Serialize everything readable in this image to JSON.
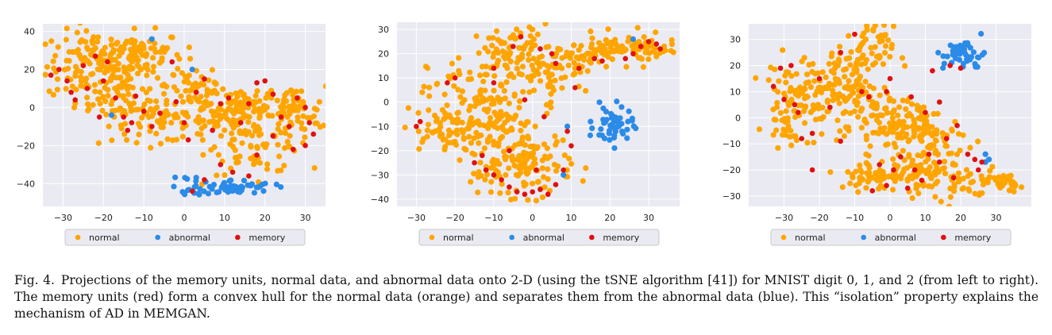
{
  "caption": {
    "label": "Fig. 4.",
    "text": "Projections of the memory units, normal data, and abnormal data onto 2-D (using the tSNE algorithm [41]) for MNIST digit 0, 1, and 2 (from left to right). The memory units (red) form a convex hull for the normal data (orange) and separates them from the abnormal data (blue). This “isolation” property explains the mechanism of AD in MEMGAN."
  },
  "colors": {
    "normal": "#ffa500",
    "abnormal": "#2a8be8",
    "memory": "#e01010",
    "plot_bg": "#eaeaf2",
    "grid": "#ffffff"
  },
  "chart_data": [
    {
      "type": "scatter",
      "title": "",
      "xlabel": "",
      "ylabel": "",
      "xlim": [
        -35,
        35
      ],
      "ylim": [
        -52,
        44
      ],
      "xticks": [
        -30,
        -20,
        -10,
        0,
        10,
        20,
        30
      ],
      "yticks": [
        -40,
        -20,
        0,
        20,
        40
      ],
      "grid": true,
      "legend": {
        "placement": "bottom",
        "entries": [
          "normal",
          "abnormal",
          "memory"
        ]
      },
      "series": [
        {
          "name": "normal",
          "clusters": [
            {
              "cx": -22,
              "cy": 22,
              "sx": 6,
              "sy": 9,
              "n": 120
            },
            {
              "cx": -12,
              "cy": 28,
              "sx": 6,
              "sy": 6,
              "n": 90
            },
            {
              "cx": -15,
              "cy": 5,
              "sx": 6,
              "sy": 7,
              "n": 70
            },
            {
              "cx": -6,
              "cy": -8,
              "sx": 6,
              "sy": 5,
              "n": 60
            },
            {
              "cx": 3,
              "cy": 12,
              "sx": 4,
              "sy": 6,
              "n": 40
            },
            {
              "cx": 8,
              "cy": -5,
              "sx": 5,
              "sy": 6,
              "n": 60
            },
            {
              "cx": 18,
              "cy": -15,
              "sx": 6,
              "sy": 10,
              "n": 110
            },
            {
              "cx": 27,
              "cy": -3,
              "sx": 4,
              "sy": 7,
              "n": 60
            },
            {
              "cx": 16,
              "cy": 2,
              "sx": 5,
              "sy": 5,
              "n": 50
            }
          ]
        },
        {
          "name": "abnormal",
          "clusters": [
            {
              "cx": 12,
              "cy": -42,
              "sx": 5,
              "sy": 2,
              "n": 55
            },
            {
              "cx": 3,
              "cy": -40,
              "sx": 2,
              "sy": 3,
              "n": 12
            }
          ],
          "points": [
            [
              -8,
              36
            ],
            [
              2,
              20
            ],
            [
              -18,
              -4
            ]
          ]
        },
        {
          "name": "memory",
          "points": [
            [
              -33,
              17
            ],
            [
              -31,
              20
            ],
            [
              -29,
              14
            ],
            [
              -28,
              8
            ],
            [
              -27,
              4
            ],
            [
              -25,
              22
            ],
            [
              -22,
              27
            ],
            [
              -20,
              14
            ],
            [
              -19,
              24
            ],
            [
              -17,
              5
            ],
            [
              -15,
              -5
            ],
            [
              -13,
              -8
            ],
            [
              -12,
              6
            ],
            [
              -10,
              -2
            ],
            [
              -8,
              -10
            ],
            [
              -6,
              -3
            ],
            [
              -3,
              24
            ],
            [
              -2,
              3
            ],
            [
              0,
              -8
            ],
            [
              1,
              -17
            ],
            [
              3,
              8
            ],
            [
              5,
              15
            ],
            [
              7,
              -12
            ],
            [
              9,
              2
            ],
            [
              11,
              5
            ],
            [
              14,
              -8
            ],
            [
              16,
              2
            ],
            [
              18,
              13
            ],
            [
              20,
              14
            ],
            [
              22,
              7
            ],
            [
              24,
              -5
            ],
            [
              26,
              -10
            ],
            [
              28,
              5
            ],
            [
              30,
              0
            ],
            [
              31,
              -8
            ],
            [
              32,
              -14
            ],
            [
              30,
              -20
            ],
            [
              27,
              -22
            ],
            [
              22,
              -15
            ],
            [
              18,
              -25
            ],
            [
              16,
              -36
            ],
            [
              12,
              -34
            ],
            [
              9,
              -30
            ],
            [
              5,
              -38
            ],
            [
              2,
              -44
            ],
            [
              -21,
              -5
            ],
            [
              -14,
              -12
            ],
            [
              -24,
              10
            ]
          ]
        }
      ]
    },
    {
      "type": "scatter",
      "title": "",
      "xlabel": "",
      "ylabel": "",
      "xlim": [
        -35,
        38
      ],
      "ylim": [
        -43,
        33
      ],
      "xticks": [
        -30,
        -20,
        -10,
        0,
        10,
        20,
        30
      ],
      "yticks": [
        -40,
        -30,
        -20,
        -10,
        0,
        10,
        20,
        30
      ],
      "grid": true,
      "legend": {
        "placement": "bottom",
        "entries": [
          "normal",
          "abnormal",
          "memory"
        ]
      },
      "series": [
        {
          "name": "normal",
          "clusters": [
            {
              "cx": -22,
              "cy": -12,
              "sx": 6,
              "sy": 5,
              "n": 80
            },
            {
              "cx": -15,
              "cy": 3,
              "sx": 6,
              "sy": 8,
              "n": 70
            },
            {
              "cx": -5,
              "cy": 20,
              "sx": 5,
              "sy": 6,
              "n": 80
            },
            {
              "cx": 3,
              "cy": 12,
              "sx": 5,
              "sy": 7,
              "n": 60
            },
            {
              "cx": -8,
              "cy": -8,
              "sx": 4,
              "sy": 6,
              "n": 50
            },
            {
              "cx": 0,
              "cy": -25,
              "sx": 5,
              "sy": 7,
              "n": 100
            },
            {
              "cx": -8,
              "cy": -28,
              "sx": 4,
              "sy": 4,
              "n": 40
            },
            {
              "cx": 12,
              "cy": 16,
              "sx": 3,
              "sy": 4,
              "n": 30
            },
            {
              "cx": 22,
              "cy": 22,
              "sx": 6,
              "sy": 3,
              "n": 70
            },
            {
              "cx": 31,
              "cy": 22,
              "sx": 3,
              "sy": 2,
              "n": 25
            }
          ]
        },
        {
          "name": "abnormal",
          "clusters": [
            {
              "cx": 21,
              "cy": -10,
              "sx": 2.5,
              "sy": 4,
              "n": 50
            }
          ],
          "points": [
            [
              26,
              26
            ],
            [
              8,
              -30
            ],
            [
              15,
              -8
            ],
            [
              23,
              -2
            ],
            [
              9,
              -10
            ]
          ]
        },
        {
          "name": "memory",
          "points": [
            [
              -30,
              -10
            ],
            [
              -29,
              -8
            ],
            [
              -22,
              8
            ],
            [
              -20,
              10
            ],
            [
              -15,
              -25
            ],
            [
              -13,
              -22
            ],
            [
              -12,
              -28
            ],
            [
              -10,
              -30
            ],
            [
              -8,
              -32
            ],
            [
              -6,
              -35
            ],
            [
              -4,
              -37
            ],
            [
              -2,
              -38
            ],
            [
              0,
              -37
            ],
            [
              2,
              -36
            ],
            [
              4,
              -38
            ],
            [
              6,
              -34
            ],
            [
              8,
              -28
            ],
            [
              9,
              -12
            ],
            [
              10,
              -18
            ],
            [
              11,
              6
            ],
            [
              12,
              14
            ],
            [
              -5,
              23
            ],
            [
              -3,
              27
            ],
            [
              2,
              22
            ],
            [
              5,
              20
            ],
            [
              6,
              16
            ],
            [
              16,
              18
            ],
            [
              18,
              17
            ],
            [
              24,
              18
            ],
            [
              26,
              20
            ],
            [
              28,
              23
            ],
            [
              30,
              25
            ],
            [
              32,
              24
            ],
            [
              33,
              22
            ],
            [
              -10,
              8
            ],
            [
              -2,
              1
            ],
            [
              3,
              -6
            ],
            [
              -10,
              14
            ],
            [
              1,
              -28
            ],
            [
              -6,
              -20
            ]
          ]
        }
      ]
    },
    {
      "type": "scatter",
      "title": "",
      "xlabel": "",
      "ylabel": "",
      "xlim": [
        -40,
        40
      ],
      "ylim": [
        -34,
        36
      ],
      "xticks": [
        -30,
        -20,
        -10,
        0,
        10,
        20,
        30
      ],
      "yticks": [
        -30,
        -20,
        -10,
        0,
        10,
        20,
        30
      ],
      "grid": true,
      "legend": {
        "placement": "bottom",
        "entries": [
          "normal",
          "abnormal",
          "memory"
        ]
      },
      "series": [
        {
          "name": "normal",
          "clusters": [
            {
              "cx": -29,
              "cy": 5,
              "sx": 3,
              "sy": 8,
              "n": 60
            },
            {
              "cx": -20,
              "cy": 10,
              "sx": 5,
              "sy": 7,
              "n": 70
            },
            {
              "cx": -7,
              "cy": 25,
              "sx": 4,
              "sy": 5,
              "n": 60
            },
            {
              "cx": -12,
              "cy": 12,
              "sx": 5,
              "sy": 6,
              "n": 60
            },
            {
              "cx": -5,
              "cy": -2,
              "sx": 5,
              "sy": 5,
              "n": 50
            },
            {
              "cx": 5,
              "cy": 0,
              "sx": 5,
              "sy": 6,
              "n": 60
            },
            {
              "cx": 12,
              "cy": -8,
              "sx": 6,
              "sy": 5,
              "n": 70
            },
            {
              "cx": -3,
              "cy": -22,
              "sx": 6,
              "sy": 3,
              "n": 70
            },
            {
              "cx": 10,
              "cy": -20,
              "sx": 6,
              "sy": 4,
              "n": 60
            },
            {
              "cx": 22,
              "cy": -25,
              "sx": 5,
              "sy": 3,
              "n": 40
            },
            {
              "cx": 33,
              "cy": -25,
              "sx": 2,
              "sy": 1.5,
              "n": 25
            }
          ]
        },
        {
          "name": "abnormal",
          "clusters": [
            {
              "cx": 21,
              "cy": 24,
              "sx": 3,
              "sy": 3,
              "n": 45
            }
          ],
          "points": [
            [
              27,
              -14
            ],
            [
              28,
              -16
            ],
            [
              27,
              -17
            ]
          ]
        },
        {
          "name": "memory",
          "points": [
            [
              -33,
              12
            ],
            [
              -31,
              19
            ],
            [
              -28,
              20
            ],
            [
              -30,
              7
            ],
            [
              -27,
              5
            ],
            [
              -26,
              2
            ],
            [
              -25,
              -8
            ],
            [
              -22,
              -20
            ],
            [
              -20,
              15
            ],
            [
              -17,
              4
            ],
            [
              -14,
              -9
            ],
            [
              -10,
              32
            ],
            [
              -8,
              10
            ],
            [
              -6,
              8
            ],
            [
              -3,
              -18
            ],
            [
              -5,
              -28
            ],
            [
              -1,
              -26
            ],
            [
              1,
              -20
            ],
            [
              3,
              -15
            ],
            [
              5,
              -27
            ],
            [
              7,
              -20
            ],
            [
              9,
              -24
            ],
            [
              11,
              -14
            ],
            [
              12,
              18
            ],
            [
              14,
              -17
            ],
            [
              16,
              -8
            ],
            [
              17,
              20
            ],
            [
              18,
              -23
            ],
            [
              20,
              19
            ],
            [
              22,
              -14
            ],
            [
              24,
              -16
            ],
            [
              25,
              -20
            ],
            [
              26,
              -17
            ],
            [
              14,
              6
            ],
            [
              6,
              8
            ],
            [
              -14,
              25
            ],
            [
              -22,
              -6
            ],
            [
              10,
              2
            ],
            [
              -1,
              10
            ],
            [
              19,
              -3
            ],
            [
              0,
              15
            ]
          ]
        }
      ]
    }
  ]
}
